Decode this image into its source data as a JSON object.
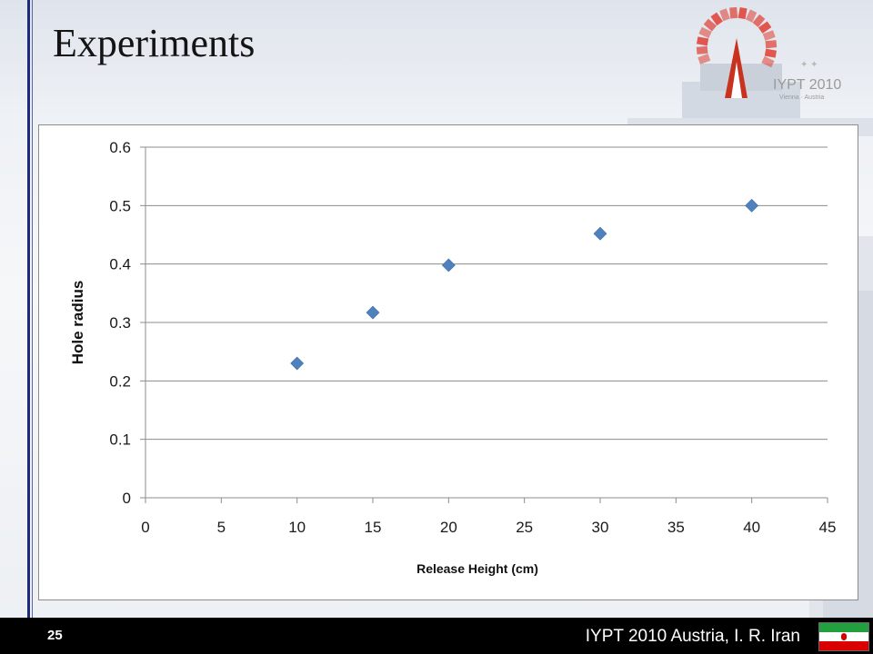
{
  "slide": {
    "title": "Experiments",
    "page_number": "25",
    "footer_text": "IYPT 2010 Austria, I. R. Iran"
  },
  "logo": {
    "text": "IYPT 2010",
    "subtext": "Vienna · Austria"
  },
  "colors": {
    "accent_blue": "#1f2a7a",
    "marker": "#4f81bd",
    "logo_red": "#e03c31"
  },
  "icons": [
    "iypt-logo-icon",
    "iran-flag-icon"
  ],
  "chart_data": {
    "type": "scatter",
    "title": "",
    "xlabel": "Release Height (cm)",
    "ylabel": "Hole radius",
    "xlim": [
      0,
      45
    ],
    "ylim": [
      0,
      0.6
    ],
    "xticks": [
      "0",
      "5",
      "10",
      "15",
      "20",
      "25",
      "30",
      "35",
      "40",
      "45"
    ],
    "yticks": [
      "0",
      "0.1",
      "0.2",
      "0.3",
      "0.4",
      "0.5",
      "0.6"
    ],
    "grid": "horizontal",
    "legend": "none",
    "marker": "diamond",
    "series": [
      {
        "x": [
          10,
          15,
          20,
          30,
          40
        ],
        "y": [
          0.23,
          0.317,
          0.398,
          0.452,
          0.5
        ]
      }
    ]
  }
}
